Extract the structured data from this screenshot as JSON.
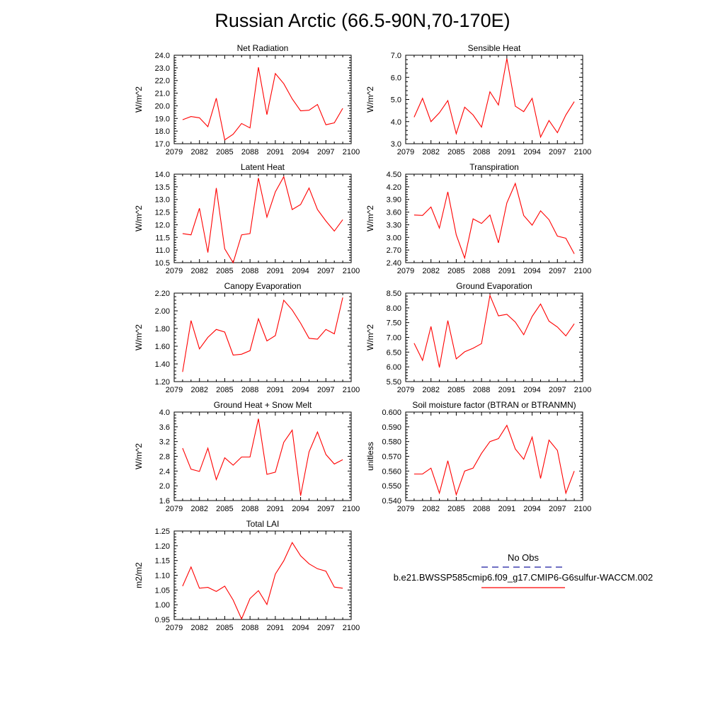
{
  "title": "Russian Arctic (66.5-90N,70-170E)",
  "legend": {
    "obs_label": "No Obs",
    "case_label": "b.e21.BWSSP585cmip6.f09_g17.CMIP6-G6sulfur-WACCM.002",
    "obs_color": "#1a1aa0",
    "case_color": "#ff0000"
  },
  "chart_data": [
    {
      "type": "line",
      "title": "Net Radiation",
      "ylabel": "W/m^2",
      "xlim": [
        2079,
        2100
      ],
      "xticks": [
        "2079",
        "2082",
        "2085",
        "2088",
        "2091",
        "2094",
        "2097",
        "2100"
      ],
      "ylim": [
        17.0,
        24.0
      ],
      "yticks": [
        "17.0",
        "18.0",
        "19.0",
        "20.0",
        "21.0",
        "22.0",
        "23.0",
        "24.0"
      ],
      "x": [
        2080,
        2081,
        2082,
        2083,
        2084,
        2085,
        2086,
        2087,
        2088,
        2089,
        2090,
        2091,
        2092,
        2093,
        2094,
        2095,
        2096,
        2097,
        2098,
        2099
      ],
      "series": [
        {
          "values": [
            18.9,
            19.15,
            19.05,
            18.35,
            20.6,
            17.3,
            17.75,
            18.6,
            18.25,
            23.05,
            19.3,
            22.55,
            21.75,
            20.55,
            19.6,
            19.65,
            20.1,
            18.5,
            18.65,
            19.8
          ]
        }
      ]
    },
    {
      "type": "line",
      "title": "Sensible Heat",
      "ylabel": "W/m^2",
      "xlim": [
        2079,
        2100
      ],
      "xticks": [
        "2079",
        "2082",
        "2085",
        "2088",
        "2091",
        "2094",
        "2097",
        "2100"
      ],
      "ylim": [
        3.0,
        7.0
      ],
      "yticks": [
        "3.0",
        "4.0",
        "5.0",
        "6.0",
        "7.0"
      ],
      "x": [
        2080,
        2081,
        2082,
        2083,
        2084,
        2085,
        2086,
        2087,
        2088,
        2089,
        2090,
        2091,
        2092,
        2093,
        2094,
        2095,
        2096,
        2097,
        2098,
        2099
      ],
      "series": [
        {
          "values": [
            4.2,
            5.05,
            4.0,
            4.4,
            4.95,
            3.45,
            4.65,
            4.3,
            3.75,
            5.35,
            4.75,
            6.85,
            4.7,
            4.45,
            5.05,
            3.3,
            4.05,
            3.5,
            4.3,
            4.9
          ]
        }
      ]
    },
    {
      "type": "line",
      "title": "Latent Heat",
      "ylabel": "W/m^2",
      "xlim": [
        2079,
        2100
      ],
      "xticks": [
        "2079",
        "2082",
        "2085",
        "2088",
        "2091",
        "2094",
        "2097",
        "2100"
      ],
      "ylim": [
        10.5,
        14.0
      ],
      "yticks": [
        "10.5",
        "11.0",
        "11.5",
        "12.0",
        "12.5",
        "13.0",
        "13.5",
        "14.0"
      ],
      "x": [
        2080,
        2081,
        2082,
        2083,
        2084,
        2085,
        2086,
        2087,
        2088,
        2089,
        2090,
        2091,
        2092,
        2093,
        2094,
        2095,
        2096,
        2097,
        2098,
        2099
      ],
      "series": [
        {
          "values": [
            11.65,
            11.6,
            12.65,
            10.9,
            13.45,
            11.05,
            10.5,
            11.6,
            11.65,
            13.85,
            12.3,
            13.3,
            13.9,
            12.6,
            12.8,
            13.45,
            12.6,
            12.15,
            11.75,
            12.2
          ]
        }
      ]
    },
    {
      "type": "line",
      "title": "Transpiration",
      "ylabel": "W/m^2",
      "xlim": [
        2079,
        2100
      ],
      "xticks": [
        "2079",
        "2082",
        "2085",
        "2088",
        "2091",
        "2094",
        "2097",
        "2100"
      ],
      "ylim": [
        2.4,
        4.5
      ],
      "yticks": [
        "2.40",
        "2.70",
        "3.00",
        "3.30",
        "3.60",
        "3.90",
        "4.20",
        "4.50"
      ],
      "x": [
        2080,
        2081,
        2082,
        2083,
        2084,
        2085,
        2086,
        2087,
        2088,
        2089,
        2090,
        2091,
        2092,
        2093,
        2094,
        2095,
        2096,
        2097,
        2098,
        2099
      ],
      "series": [
        {
          "values": [
            3.53,
            3.52,
            3.72,
            3.22,
            4.08,
            3.06,
            2.51,
            3.44,
            3.33,
            3.53,
            2.87,
            3.82,
            4.28,
            3.52,
            3.29,
            3.63,
            3.42,
            3.03,
            2.98,
            2.61
          ]
        }
      ]
    },
    {
      "type": "line",
      "title": "Canopy Evaporation",
      "ylabel": "W/m^2",
      "xlim": [
        2079,
        2100
      ],
      "xticks": [
        "2079",
        "2082",
        "2085",
        "2088",
        "2091",
        "2094",
        "2097",
        "2100"
      ],
      "ylim": [
        1.2,
        2.2
      ],
      "yticks": [
        "1.20",
        "1.40",
        "1.60",
        "1.80",
        "2.00",
        "2.20"
      ],
      "x": [
        2080,
        2081,
        2082,
        2083,
        2084,
        2085,
        2086,
        2087,
        2088,
        2089,
        2090,
        2091,
        2092,
        2093,
        2094,
        2095,
        2096,
        2097,
        2098,
        2099
      ],
      "series": [
        {
          "values": [
            1.31,
            1.89,
            1.57,
            1.7,
            1.79,
            1.76,
            1.5,
            1.51,
            1.55,
            1.91,
            1.66,
            1.72,
            2.12,
            2.01,
            1.86,
            1.69,
            1.68,
            1.79,
            1.74,
            2.15
          ]
        }
      ]
    },
    {
      "type": "line",
      "title": "Ground Evaporation",
      "ylabel": "W/m^2",
      "xlim": [
        2079,
        2100
      ],
      "xticks": [
        "2079",
        "2082",
        "2085",
        "2088",
        "2091",
        "2094",
        "2097",
        "2100"
      ],
      "ylim": [
        5.5,
        8.5
      ],
      "yticks": [
        "5.50",
        "6.00",
        "6.50",
        "7.00",
        "7.50",
        "8.00",
        "8.50"
      ],
      "x": [
        2080,
        2081,
        2082,
        2083,
        2084,
        2085,
        2086,
        2087,
        2088,
        2089,
        2090,
        2091,
        2092,
        2093,
        2094,
        2095,
        2096,
        2097,
        2098,
        2099
      ],
      "series": [
        {
          "values": [
            6.8,
            6.22,
            7.37,
            5.98,
            7.57,
            6.27,
            6.51,
            6.63,
            6.79,
            8.42,
            7.73,
            7.78,
            7.52,
            7.09,
            7.71,
            8.13,
            7.55,
            7.35,
            7.05,
            7.46
          ]
        }
      ]
    },
    {
      "type": "line",
      "title": "Ground Heat + Snow Melt",
      "ylabel": "W/m^2",
      "xlim": [
        2079,
        2100
      ],
      "xticks": [
        "2079",
        "2082",
        "2085",
        "2088",
        "2091",
        "2094",
        "2097",
        "2100"
      ],
      "ylim": [
        1.6,
        4.0
      ],
      "yticks": [
        "1.6",
        "2.0",
        "2.4",
        "2.8",
        "3.2",
        "3.6",
        "4.0"
      ],
      "x": [
        2080,
        2081,
        2082,
        2083,
        2084,
        2085,
        2086,
        2087,
        2088,
        2089,
        2090,
        2091,
        2092,
        2093,
        2094,
        2095,
        2096,
        2097,
        2098,
        2099
      ],
      "series": [
        {
          "values": [
            3.02,
            2.45,
            2.39,
            3.02,
            2.17,
            2.76,
            2.56,
            2.78,
            2.78,
            3.82,
            2.31,
            2.37,
            3.18,
            3.51,
            1.73,
            2.92,
            3.46,
            2.85,
            2.59,
            2.71
          ]
        }
      ]
    },
    {
      "type": "line",
      "title": "Soil moisture factor (BTRAN or BTRANMN)",
      "ylabel": "unitless",
      "xlim": [
        2079,
        2100
      ],
      "xticks": [
        "2079",
        "2082",
        "2085",
        "2088",
        "2091",
        "2094",
        "2097",
        "2100"
      ],
      "ylim": [
        0.54,
        0.6
      ],
      "yticks": [
        "0.540",
        "0.550",
        "0.560",
        "0.570",
        "0.580",
        "0.590",
        "0.600"
      ],
      "x": [
        2080,
        2081,
        2082,
        2083,
        2084,
        2085,
        2086,
        2087,
        2088,
        2089,
        2090,
        2091,
        2092,
        2093,
        2094,
        2095,
        2096,
        2097,
        2098,
        2099
      ],
      "series": [
        {
          "values": [
            0.558,
            0.558,
            0.562,
            0.545,
            0.567,
            0.544,
            0.56,
            0.562,
            0.572,
            0.58,
            0.582,
            0.591,
            0.575,
            0.568,
            0.583,
            0.555,
            0.581,
            0.574,
            0.545,
            0.56
          ]
        }
      ]
    },
    {
      "type": "line",
      "title": "Total LAI",
      "ylabel": "m2/m2",
      "xlim": [
        2079,
        2100
      ],
      "xticks": [
        "2079",
        "2082",
        "2085",
        "2088",
        "2091",
        "2094",
        "2097",
        "2100"
      ],
      "ylim": [
        0.95,
        1.25
      ],
      "yticks": [
        "0.95",
        "1.00",
        "1.05",
        "1.10",
        "1.15",
        "1.20",
        "1.25"
      ],
      "x": [
        2080,
        2081,
        2082,
        2083,
        2084,
        2085,
        2086,
        2087,
        2088,
        2089,
        2090,
        2091,
        2092,
        2093,
        2094,
        2095,
        2096,
        2097,
        2098,
        2099
      ],
      "series": [
        {
          "values": [
            1.063,
            1.128,
            1.056,
            1.059,
            1.045,
            1.063,
            1.016,
            0.952,
            1.021,
            1.048,
            1.001,
            1.104,
            1.149,
            1.211,
            1.166,
            1.139,
            1.122,
            1.114,
            1.06,
            1.056
          ]
        }
      ]
    }
  ]
}
